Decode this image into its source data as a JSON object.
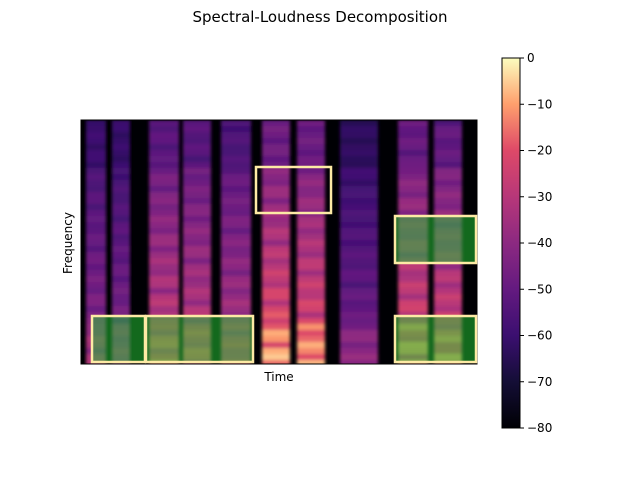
{
  "chart_data": {
    "type": "heatmap",
    "title": "Spectral-Loudness Decomposition",
    "xlabel": "Time",
    "ylabel": "Frequency",
    "colormap": "magma",
    "colorbar": {
      "range": [
        -80,
        0
      ],
      "ticks": [
        0,
        -10,
        -20,
        -30,
        -40,
        -50,
        -60,
        -70,
        -80
      ]
    },
    "highlight_colors": {
      "outline": "#fdeaa5",
      "green_overlay": "#22c033",
      "background": "#000004"
    }
  }
}
